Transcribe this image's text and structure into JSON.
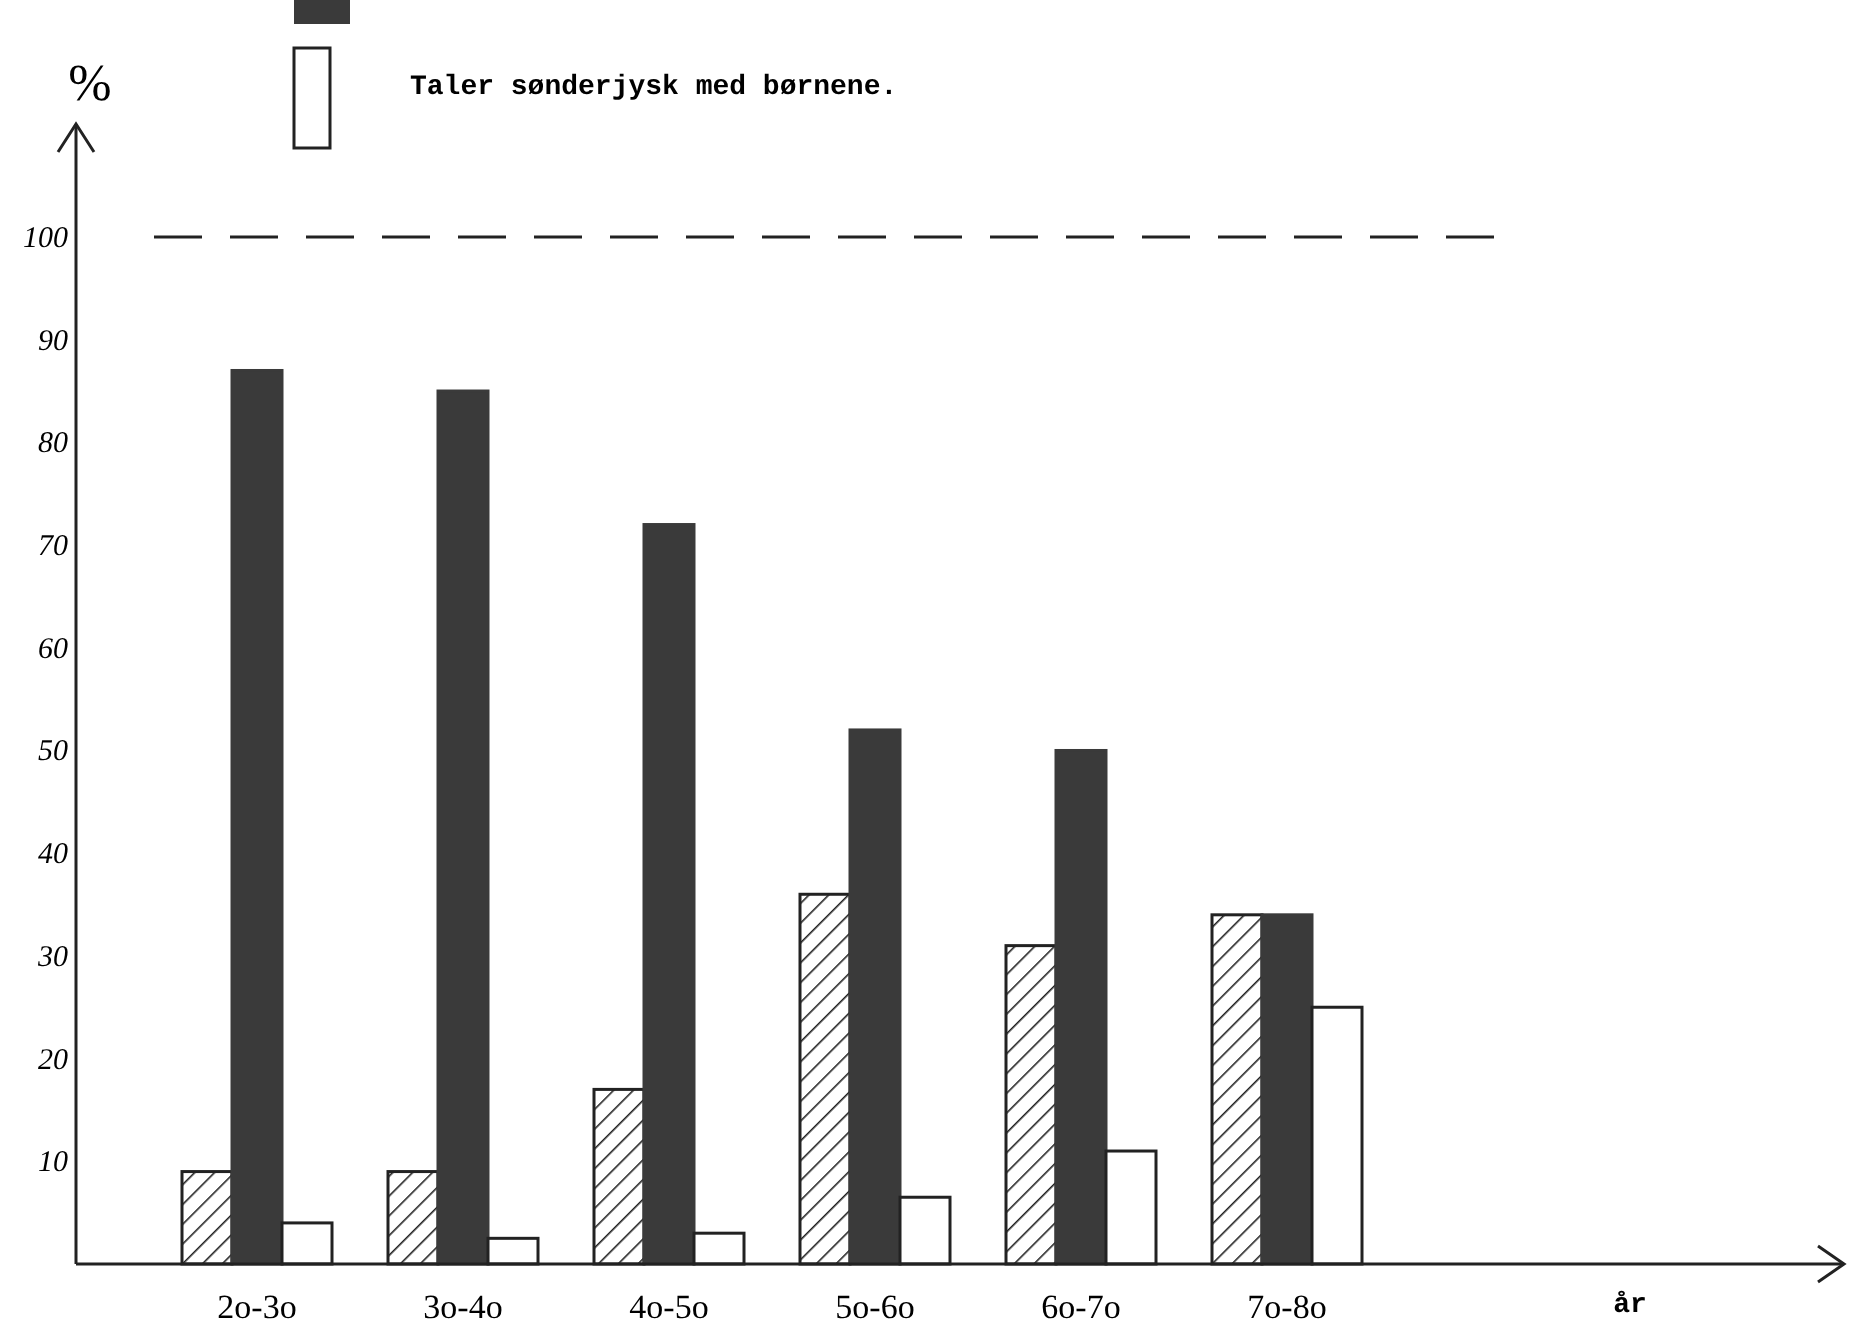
{
  "chart_data": {
    "type": "bar",
    "xlabel": "år",
    "ylabel": "%",
    "categories": [
      "2o-3o",
      "3o-4o",
      "4o-5o",
      "5o-6o",
      "6o-7o",
      "7o-8o"
    ],
    "series": [
      {
        "color": "#222222",
        "values": [
          9,
          9,
          17,
          36,
          31,
          34
        ]
      },
      {
        "color": "#3a3a3a",
        "values": [
          87,
          85,
          72,
          52,
          50,
          34
        ]
      },
      {
        "name": "Taler sønderjysk med børnene.",
        "color": "#ffffff",
        "values": [
          4,
          2.5,
          3,
          6.5,
          11,
          25
        ]
      }
    ],
    "ylim": [
      0,
      111
    ],
    "yticks": [
      {
        "value": 10,
        "label": "10"
      },
      20,
      30,
      40,
      50,
      60,
      70,
      80,
      90,
      100
    ],
    "ref_lines": [
      {
        "axis": "y",
        "value": 100,
        "line_style": "dashed"
      }
    ],
    "grid": false,
    "legend": "top left"
  }
}
